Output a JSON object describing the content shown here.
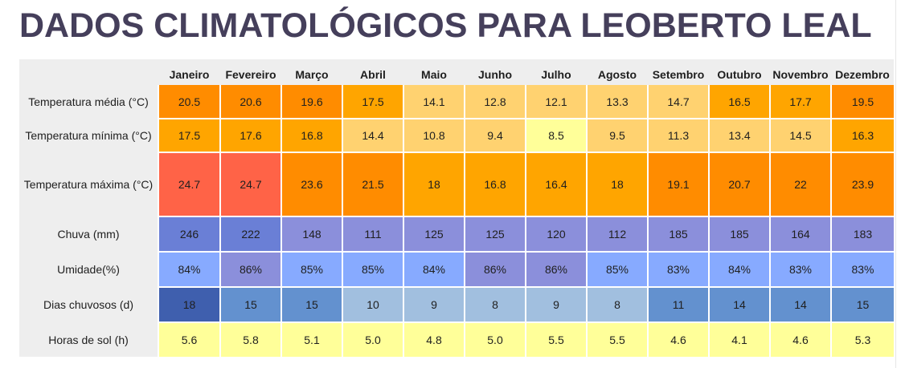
{
  "title": "DADOS CLIMATOLÓGICOS PARA LEOBERTO LEAL",
  "months": [
    "Janeiro",
    "Fevereiro",
    "Março",
    "Abril",
    "Maio",
    "Junho",
    "Julho",
    "Agosto",
    "Setembro",
    "Outubro",
    "Novembro",
    "Dezembro"
  ],
  "rows": [
    {
      "label": "Temperatura média (°C)",
      "values": [
        "20.5",
        "20.6",
        "19.6",
        "17.5",
        "14.1",
        "12.8",
        "12.1",
        "13.3",
        "14.7",
        "16.5",
        "17.7",
        "19.5"
      ],
      "colors": [
        "#ff8c00",
        "#ff8c00",
        "#ff8c00",
        "#ffa500",
        "#ffd270",
        "#ffd270",
        "#ffd270",
        "#ffd270",
        "#ffd270",
        "#ffa500",
        "#ffa500",
        "#ff8c00"
      ]
    },
    {
      "label": "Temperatura mínima (°C)",
      "values": [
        "17.5",
        "17.6",
        "16.8",
        "14.4",
        "10.8",
        "9.4",
        "8.5",
        "9.5",
        "11.3",
        "13.4",
        "14.5",
        "16.3"
      ],
      "colors": [
        "#ffa500",
        "#ffa500",
        "#ffa500",
        "#ffd270",
        "#ffd270",
        "#ffd270",
        "#ffff99",
        "#ffd270",
        "#ffd270",
        "#ffd270",
        "#ffd270",
        "#ffa500"
      ]
    },
    {
      "label": "Temperatura máxima (°C)",
      "values": [
        "24.7",
        "24.7",
        "23.6",
        "21.5",
        "18",
        "16.8",
        "16.4",
        "18",
        "19.1",
        "20.7",
        "22",
        "23.9"
      ],
      "colors": [
        "#ff6347",
        "#ff6347",
        "#ff8c00",
        "#ff8c00",
        "#ffa500",
        "#ffa500",
        "#ffa500",
        "#ffa500",
        "#ff8c00",
        "#ff8c00",
        "#ff8c00",
        "#ff8c00"
      ]
    },
    {
      "label": "Chuva (mm)",
      "values": [
        "246",
        "222",
        "148",
        "111",
        "125",
        "125",
        "120",
        "112",
        "185",
        "185",
        "164",
        "183"
      ],
      "colors": [
        "#6a7fd6",
        "#6a7fd6",
        "#8b8fdb",
        "#8b8fdb",
        "#8b8fdb",
        "#8b8fdb",
        "#8b8fdb",
        "#8b8fdb",
        "#8b8fdb",
        "#8b8fdb",
        "#8b8fdb",
        "#8b8fdb"
      ]
    },
    {
      "label": "Umidade(%)",
      "values": [
        "84%",
        "86%",
        "85%",
        "85%",
        "84%",
        "86%",
        "86%",
        "85%",
        "83%",
        "84%",
        "83%",
        "83%"
      ],
      "colors": [
        "#87aaff",
        "#8b8fdb",
        "#87aaff",
        "#87aaff",
        "#87aaff",
        "#8b8fdb",
        "#8b8fdb",
        "#87aaff",
        "#87aaff",
        "#87aaff",
        "#87aaff",
        "#87aaff"
      ]
    },
    {
      "label": "Dias chuvosos (d)",
      "values": [
        "18",
        "15",
        "15",
        "10",
        "9",
        "8",
        "9",
        "8",
        "11",
        "14",
        "14",
        "15"
      ],
      "colors": [
        "#3f5fae",
        "#6391cf",
        "#6391cf",
        "#a1bfdf",
        "#a1bfdf",
        "#a1bfdf",
        "#a1bfdf",
        "#a1bfdf",
        "#6391cf",
        "#6391cf",
        "#6391cf",
        "#6391cf"
      ]
    },
    {
      "label": "Horas de sol (h)",
      "values": [
        "5.6",
        "5.8",
        "5.1",
        "5.0",
        "4.8",
        "5.0",
        "5.5",
        "5.5",
        "4.6",
        "4.1",
        "4.6",
        "5.3"
      ],
      "colors": [
        "#ffff99",
        "#ffff99",
        "#ffff99",
        "#ffff99",
        "#ffff99",
        "#ffff99",
        "#ffff99",
        "#ffff99",
        "#ffff99",
        "#ffff99",
        "#ffff99",
        "#ffff99"
      ]
    }
  ]
}
